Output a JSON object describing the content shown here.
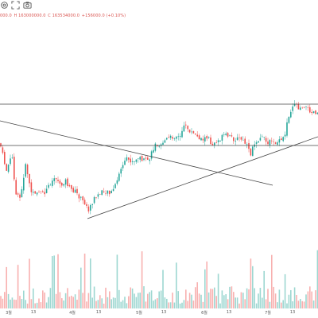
{
  "toolbar": {
    "icons": [
      "settings-icon",
      "fullscreen-icon",
      "camera-icon"
    ]
  },
  "ohlc": {
    "open_fragment": "000.0",
    "close": "C 163534000.0",
    "change": "+156000.0 (+0.10%)",
    "high_fragment": "H 163000000.0"
  },
  "colors": {
    "up": "#26a69a",
    "down": "#ef5350",
    "trend_line": "#444444",
    "text_red": "#d9534f"
  },
  "chart_data": {
    "type": "candlestick",
    "x_tick_labels": [
      "3월",
      "13",
      "4월",
      "13",
      "5월",
      "13",
      "6월",
      "13",
      "7월",
      "13"
    ],
    "horizontal_levels": [
      "resistance",
      "support"
    ],
    "trend_lines": [
      "descending",
      "ascending"
    ],
    "has_volume_pane": true,
    "grid": false
  }
}
